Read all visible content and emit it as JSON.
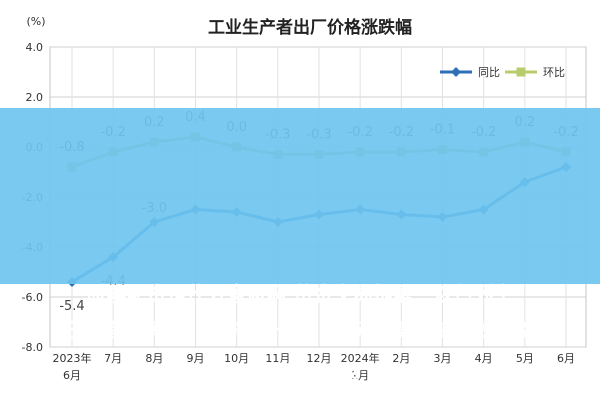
{
  "chart_data": {
    "type": "line",
    "title": "工业生产者出厂价格涨跌幅",
    "unit_label": "(%)",
    "x_tick_labels": [
      [
        "2023年",
        "6月"
      ],
      [
        "7月"
      ],
      [
        "8月"
      ],
      [
        "9月"
      ],
      [
        "10月"
      ],
      [
        "11月"
      ],
      [
        "12月"
      ],
      [
        "2024年",
        "1月"
      ],
      [
        "2月"
      ],
      [
        "3月"
      ],
      [
        "4月"
      ],
      [
        "5月"
      ],
      [
        "6月"
      ]
    ],
    "categories": [
      "2023年6月",
      "7月",
      "8月",
      "9月",
      "10月",
      "11月",
      "12月",
      "2024年1月",
      "2月",
      "3月",
      "4月",
      "5月",
      "6月"
    ],
    "y_ticks": [
      "4.0",
      "2.0",
      "0.0",
      "-2.0",
      "-4.0",
      "-6.0",
      "-8.0"
    ],
    "ylim": [
      -8,
      4
    ],
    "grid": true,
    "legend_position": "top-right",
    "series": [
      {
        "name": "同比",
        "color": "#2f6fb6",
        "values": [
          -5.4,
          -4.4,
          -3.0,
          -2.5,
          -2.6,
          -3.0,
          -2.7,
          -2.5,
          -2.7,
          -2.8,
          -2.5,
          -1.4,
          -0.8
        ],
        "point_labels": [
          "-5.4",
          "-4.4",
          "-3.0",
          "",
          "",
          "",
          "",
          "",
          "",
          "",
          "",
          "",
          ""
        ]
      },
      {
        "name": "环比",
        "color": "#b8cc6c",
        "values": [
          -0.8,
          -0.2,
          0.2,
          0.4,
          0.0,
          -0.3,
          -0.3,
          -0.2,
          -0.2,
          -0.1,
          -0.2,
          0.2,
          -0.2
        ],
        "point_labels": [
          "-0.8",
          "-0.2",
          "0.2",
          "0.4",
          "0.0",
          "-0.3",
          "-0.3",
          "-0.2",
          "-0.2",
          "-0.1",
          "-0.2",
          "0.2",
          "-0.2"
        ]
      }
    ]
  },
  "overlay": {
    "line1": "股票配资是什么意思啊 黄金交易提醒：以色列空",
    "line2": "巴嫩首都南郊，金价飙升近30美元，美联储决议重磅",
    "line3": "决议重磅来袭！"
  }
}
